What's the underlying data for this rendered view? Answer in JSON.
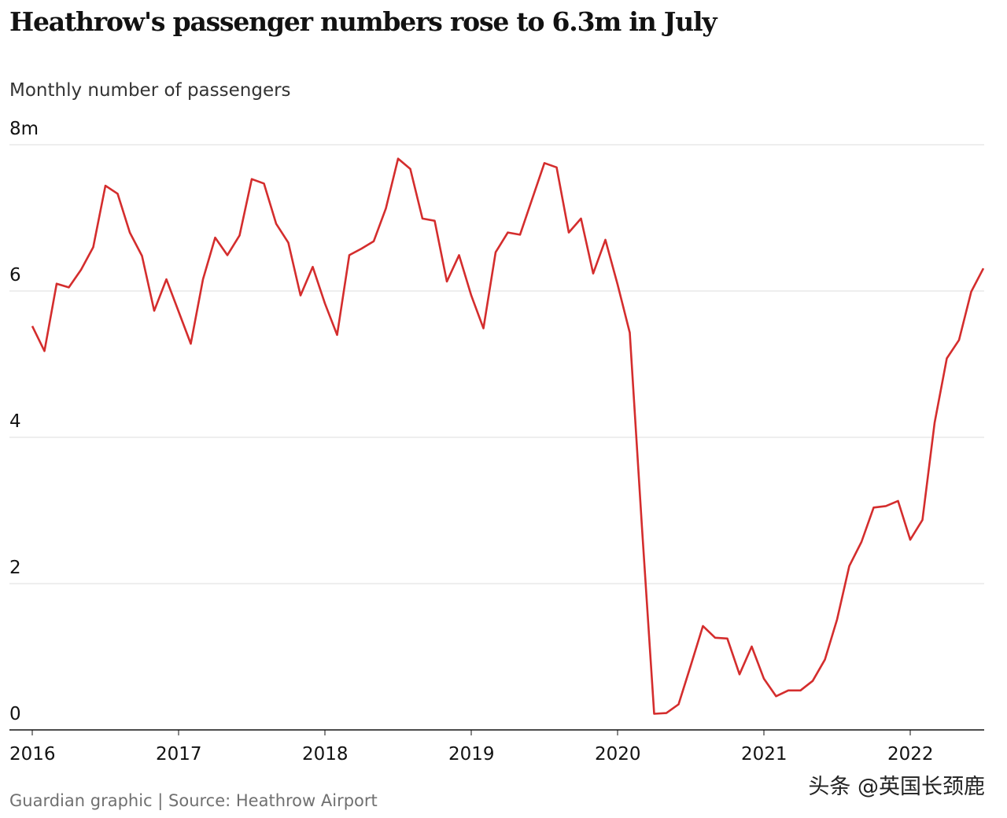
{
  "title": "Heathrow's passenger numbers rose to 6.3m in July",
  "subtitle": "Monthly number of passengers",
  "source": "Guardian graphic | Source: Heathrow Airport",
  "watermark": "头条 @英国长颈鹿",
  "chart_data": {
    "type": "line",
    "title": "Heathrow's passenger numbers rose to 6.3m in July",
    "ylabel": "Monthly number of passengers",
    "xlabel": "",
    "ylim": [
      0,
      8
    ],
    "xlim": [
      "2016-01",
      "2022-07"
    ],
    "grid": true,
    "y_ticks": [
      {
        "value": 0,
        "label": "0"
      },
      {
        "value": 2,
        "label": "2"
      },
      {
        "value": 4,
        "label": "4"
      },
      {
        "value": 6,
        "label": "6"
      },
      {
        "value": 8,
        "label": "8m"
      }
    ],
    "x_ticks": [
      {
        "value": "2016-01",
        "label": "2016"
      },
      {
        "value": "2017-01",
        "label": "2017"
      },
      {
        "value": "2018-01",
        "label": "2018"
      },
      {
        "value": "2019-01",
        "label": "2019"
      },
      {
        "value": "2020-01",
        "label": "2020"
      },
      {
        "value": "2021-01",
        "label": "2021"
      },
      {
        "value": "2022-01",
        "label": "2022"
      }
    ],
    "line_color": "#d42d2d",
    "series": [
      {
        "start": "2016-01",
        "frequency": "monthly",
        "values": [
          5.52,
          5.18,
          6.1,
          6.05,
          6.29,
          6.6,
          7.44,
          7.33,
          6.8,
          6.48,
          5.73,
          6.16,
          5.72,
          5.28,
          6.16,
          6.73,
          6.49,
          6.76,
          7.53,
          7.47,
          6.92,
          6.66,
          5.94,
          6.33,
          5.83,
          5.4,
          6.49,
          6.58,
          6.68,
          7.13,
          7.81,
          7.67,
          6.99,
          6.96,
          6.13,
          6.49,
          5.94,
          5.49,
          6.53,
          6.8,
          6.77,
          7.26,
          7.75,
          7.69,
          6.8,
          6.99,
          6.24,
          6.7,
          6.09,
          5.43,
          2.77,
          0.22,
          0.23,
          0.35,
          0.88,
          1.42,
          1.26,
          1.25,
          0.76,
          1.14,
          0.7,
          0.46,
          0.54,
          0.54,
          0.67,
          0.96,
          1.51,
          2.24,
          2.57,
          3.04,
          3.06,
          3.13,
          2.6,
          2.87,
          4.2,
          5.08,
          5.33,
          5.99,
          6.31
        ]
      }
    ]
  }
}
